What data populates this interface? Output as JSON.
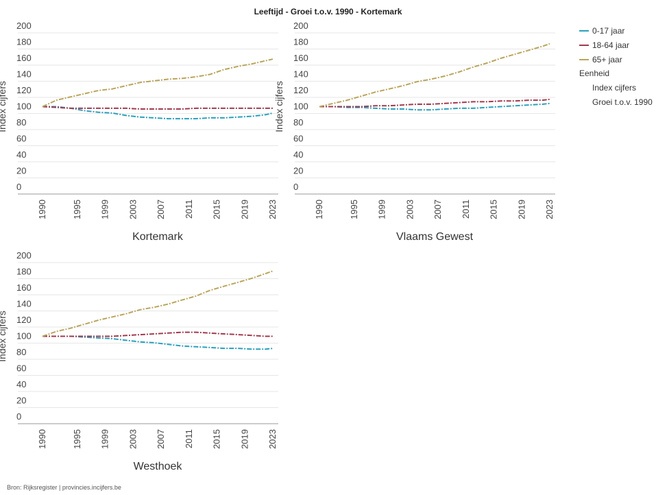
{
  "title": "Leeftijd - Groei t.o.v. 1990 - Kortemark",
  "legend": {
    "items": [
      {
        "label": "0-17 jaar",
        "color": "#2a9fbc"
      },
      {
        "label": "18-64 jaar",
        "color": "#a03a4f"
      },
      {
        "label": "65+ jaar",
        "color": "#b9a55c"
      }
    ],
    "unit_heading": "Eenheid",
    "unit_options": [
      "Index cijfers",
      "Groei t.o.v. 1990"
    ]
  },
  "source": "Bron: Rijksregister | provincies.incijfers.be",
  "chart_data": [
    {
      "type": "line",
      "title": "Kortemark",
      "ylabel": "Index cijfers",
      "ylim": [
        0,
        200
      ],
      "yticks": [
        0,
        20,
        40,
        60,
        80,
        100,
        120,
        140,
        160,
        180,
        200
      ],
      "xticks": [
        "1990",
        "1995",
        "1999",
        "2003",
        "2007",
        "2011",
        "2015",
        "2019",
        "2023"
      ],
      "x": [
        1990,
        1992,
        1994,
        1996,
        1998,
        2000,
        2002,
        2004,
        2006,
        2008,
        2010,
        2012,
        2014,
        2016,
        2018,
        2020,
        2022,
        2023
      ],
      "series": [
        {
          "name": "0-17 jaar",
          "values": [
            100,
            100,
            98,
            95,
            93,
            92,
            89,
            87,
            86,
            85,
            85,
            85,
            86,
            86,
            87,
            88,
            90,
            92
          ]
        },
        {
          "name": "18-64 jaar",
          "values": [
            100,
            99,
            98,
            98,
            98,
            98,
            98,
            97,
            97,
            97,
            97,
            98,
            98,
            98,
            98,
            98,
            98,
            98
          ]
        },
        {
          "name": "65+ jaar",
          "values": [
            100,
            108,
            112,
            116,
            120,
            122,
            126,
            130,
            132,
            134,
            135,
            137,
            140,
            146,
            150,
            153,
            157,
            159
          ]
        }
      ]
    },
    {
      "type": "line",
      "title": "Vlaams Gewest",
      "ylabel": "Index cijfers",
      "ylim": [
        0,
        200
      ],
      "yticks": [
        0,
        20,
        40,
        60,
        80,
        100,
        120,
        140,
        160,
        180,
        200
      ],
      "xticks": [
        "1990",
        "1995",
        "1999",
        "2003",
        "2007",
        "2011",
        "2015",
        "2019",
        "2023"
      ],
      "x": [
        1990,
        1992,
        1994,
        1996,
        1998,
        2000,
        2002,
        2004,
        2006,
        2008,
        2010,
        2012,
        2014,
        2016,
        2018,
        2020,
        2022,
        2023
      ],
      "series": [
        {
          "name": "0-17 jaar",
          "values": [
            100,
            100,
            99,
            99,
            98,
            97,
            97,
            96,
            96,
            97,
            98,
            98,
            99,
            100,
            101,
            102,
            103,
            104
          ]
        },
        {
          "name": "18-64 jaar",
          "values": [
            100,
            100,
            100,
            100,
            101,
            101,
            102,
            103,
            103,
            104,
            105,
            106,
            106,
            107,
            107,
            108,
            108,
            109
          ]
        },
        {
          "name": "65+ jaar",
          "values": [
            100,
            104,
            108,
            113,
            118,
            122,
            126,
            131,
            134,
            138,
            143,
            149,
            154,
            160,
            165,
            170,
            175,
            178
          ]
        }
      ]
    },
    {
      "type": "line",
      "title": "Westhoek",
      "ylabel": "Index cijfers",
      "ylim": [
        0,
        200
      ],
      "yticks": [
        0,
        20,
        40,
        60,
        80,
        100,
        120,
        140,
        160,
        180,
        200
      ],
      "xticks": [
        "1990",
        "1995",
        "1999",
        "2003",
        "2007",
        "2011",
        "2015",
        "2019",
        "2023"
      ],
      "x": [
        1990,
        1992,
        1994,
        1996,
        1998,
        2000,
        2002,
        2004,
        2006,
        2008,
        2010,
        2012,
        2014,
        2016,
        2018,
        2020,
        2022,
        2023
      ],
      "series": [
        {
          "name": "0-17 jaar",
          "values": [
            100,
            100,
            100,
            99,
            98,
            97,
            95,
            93,
            92,
            90,
            88,
            87,
            86,
            85,
            85,
            84,
            84,
            85
          ]
        },
        {
          "name": "18-64 jaar",
          "values": [
            100,
            100,
            100,
            100,
            100,
            100,
            101,
            102,
            103,
            104,
            105,
            105,
            104,
            103,
            102,
            101,
            100,
            100
          ]
        },
        {
          "name": "65+ jaar",
          "values": [
            100,
            106,
            110,
            115,
            120,
            124,
            128,
            133,
            136,
            140,
            145,
            150,
            157,
            162,
            167,
            172,
            178,
            181
          ]
        }
      ]
    }
  ]
}
